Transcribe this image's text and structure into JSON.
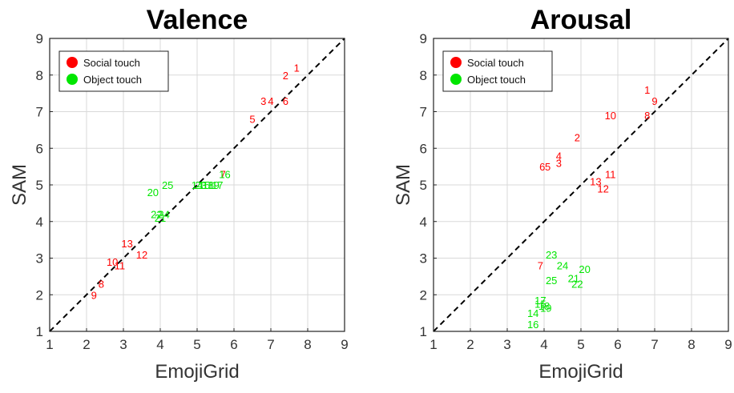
{
  "chart_data": [
    {
      "type": "scatter",
      "title": "Valence",
      "xlabel": "EmojiGrid",
      "ylabel": "SAM",
      "xlim": [
        1,
        9
      ],
      "ylim": [
        1,
        9
      ],
      "ticks": [
        1,
        2,
        3,
        4,
        5,
        6,
        7,
        8,
        9
      ],
      "grid": true,
      "legend_position": "top-left",
      "identity_line": true,
      "series": [
        {
          "name": "Social touch",
          "color": "#ff0000",
          "points": [
            {
              "label": "1",
              "x": 7.7,
              "y": 8.2
            },
            {
              "label": "2",
              "x": 7.4,
              "y": 8.0
            },
            {
              "label": "3",
              "x": 6.8,
              "y": 7.3
            },
            {
              "label": "4",
              "x": 7.0,
              "y": 7.3
            },
            {
              "label": "5",
              "x": 6.5,
              "y": 6.8
            },
            {
              "label": "6",
              "x": 7.4,
              "y": 7.3
            },
            {
              "label": "7",
              "x": 5.7,
              "y": 5.3
            },
            {
              "label": "8",
              "x": 2.4,
              "y": 2.3
            },
            {
              "label": "9",
              "x": 2.2,
              "y": 2.0
            },
            {
              "label": "10",
              "x": 2.7,
              "y": 2.9
            },
            {
              "label": "11",
              "x": 2.9,
              "y": 2.8
            },
            {
              "label": "12",
              "x": 3.5,
              "y": 3.1
            },
            {
              "label": "13",
              "x": 3.1,
              "y": 3.4
            }
          ]
        },
        {
          "name": "Object touch",
          "color": "#00e600",
          "points": [
            {
              "label": "14",
              "x": 5.0,
              "y": 5.0
            },
            {
              "label": "15",
              "x": 5.2,
              "y": 5.0
            },
            {
              "label": "16",
              "x": 5.75,
              "y": 5.3
            },
            {
              "label": "17",
              "x": 5.55,
              "y": 5.0
            },
            {
              "label": "18",
              "x": 5.3,
              "y": 5.0
            },
            {
              "label": "19",
              "x": 5.45,
              "y": 5.0
            },
            {
              "label": "20",
              "x": 3.8,
              "y": 4.8
            },
            {
              "label": "21",
              "x": 4.0,
              "y": 4.1
            },
            {
              "label": "22",
              "x": 3.9,
              "y": 4.2
            },
            {
              "label": "23",
              "x": 5.1,
              "y": 5.0
            },
            {
              "label": "24",
              "x": 4.1,
              "y": 4.2
            },
            {
              "label": "25",
              "x": 4.2,
              "y": 5.0
            }
          ]
        }
      ]
    },
    {
      "type": "scatter",
      "title": "Arousal",
      "xlabel": "EmojiGrid",
      "ylabel": "SAM",
      "xlim": [
        1,
        9
      ],
      "ylim": [
        1,
        9
      ],
      "ticks": [
        1,
        2,
        3,
        4,
        5,
        6,
        7,
        8,
        9
      ],
      "grid": true,
      "legend_position": "top-left",
      "identity_line": true,
      "series": [
        {
          "name": "Social touch",
          "color": "#ff0000",
          "points": [
            {
              "label": "1",
              "x": 6.8,
              "y": 7.6
            },
            {
              "label": "2",
              "x": 4.9,
              "y": 6.3
            },
            {
              "label": "3",
              "x": 4.4,
              "y": 5.6
            },
            {
              "label": "4",
              "x": 4.4,
              "y": 5.8
            },
            {
              "label": "5",
              "x": 4.1,
              "y": 5.5
            },
            {
              "label": "6",
              "x": 3.95,
              "y": 5.5
            },
            {
              "label": "7",
              "x": 3.9,
              "y": 2.8
            },
            {
              "label": "8",
              "x": 6.8,
              "y": 6.9
            },
            {
              "label": "9",
              "x": 7.0,
              "y": 7.3
            },
            {
              "label": "10",
              "x": 5.8,
              "y": 6.9
            },
            {
              "label": "11",
              "x": 5.8,
              "y": 5.3
            },
            {
              "label": "12",
              "x": 5.6,
              "y": 4.9
            },
            {
              "label": "13",
              "x": 5.4,
              "y": 5.1
            }
          ]
        },
        {
          "name": "Object touch",
          "color": "#00e600",
          "points": [
            {
              "label": "14",
              "x": 3.7,
              "y": 1.5
            },
            {
              "label": "15",
              "x": 3.9,
              "y": 1.75
            },
            {
              "label": "16",
              "x": 3.7,
              "y": 1.2
            },
            {
              "label": "17",
              "x": 3.9,
              "y": 1.85
            },
            {
              "label": "18",
              "x": 4.0,
              "y": 1.7
            },
            {
              "label": "19",
              "x": 4.05,
              "y": 1.65
            },
            {
              "label": "20",
              "x": 5.1,
              "y": 2.7
            },
            {
              "label": "21",
              "x": 4.8,
              "y": 2.45
            },
            {
              "label": "22",
              "x": 4.9,
              "y": 2.3
            },
            {
              "label": "23",
              "x": 4.2,
              "y": 3.1
            },
            {
              "label": "24",
              "x": 4.5,
              "y": 2.8
            },
            {
              "label": "25",
              "x": 4.2,
              "y": 2.4
            }
          ]
        }
      ]
    }
  ]
}
